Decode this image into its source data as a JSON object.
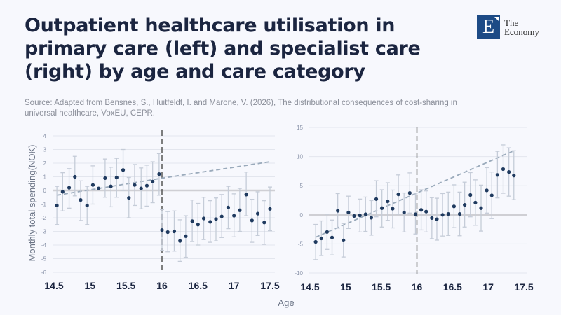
{
  "header": {
    "title": "Outpatient healthcare utilisation in primary care (left) and specialist care (right) by age and care category",
    "source": "Source: Adapted from Bensnes, S., Huitfeldt, I. and Marone, V. (2026), The distributional consequences of cost-sharing in universal healthcare, VoxEU, CEPR.",
    "logo_text": [
      "The",
      "Economy"
    ],
    "logo_letter": "E"
  },
  "colors": {
    "point": "#1f3a5f",
    "errorbar": "#c5ccd8",
    "trend": "#9aaabb",
    "cutoff": "#555555",
    "title": "#1b2540",
    "logo": "#1d4b86"
  },
  "chart_data": [
    {
      "type": "scatter",
      "panel": "left",
      "ylabel": "Monthly total spending(NOK)",
      "xlabel": "Age",
      "xlim": [
        14.5,
        17.5
      ],
      "ylim": [
        -6,
        4
      ],
      "xticks": [
        "14.5",
        "15",
        "15.5",
        "16",
        "16.5",
        "17",
        "17.5"
      ],
      "yticks": [
        "4",
        "3",
        "2",
        "1",
        "0",
        "-1",
        "-2",
        "-3",
        "-4",
        "-5",
        "-6"
      ],
      "cutoff": 16,
      "grid": true,
      "points": [
        [
          14.54,
          -1.1,
          -2.5,
          0.3
        ],
        [
          14.62,
          -0.1,
          -1.5,
          1.3
        ],
        [
          14.71,
          0.2,
          -1.3,
          1.6
        ],
        [
          14.79,
          1.0,
          -0.4,
          2.5
        ],
        [
          14.87,
          -0.7,
          -2.2,
          0.7
        ],
        [
          14.96,
          -1.1,
          -2.5,
          0.3
        ],
        [
          15.04,
          0.4,
          -1.0,
          1.8
        ],
        [
          15.12,
          0.15,
          0.15,
          0.15
        ],
        [
          15.21,
          0.9,
          -0.5,
          2.3
        ],
        [
          15.29,
          0.3,
          -1.2,
          1.7
        ],
        [
          15.37,
          0.95,
          -0.5,
          2.35
        ],
        [
          15.46,
          1.5,
          0.0,
          3.0
        ],
        [
          15.54,
          -0.55,
          -2.0,
          0.95
        ],
        [
          15.62,
          0.4,
          -1.1,
          1.9
        ],
        [
          15.71,
          0.15,
          -1.35,
          1.65
        ],
        [
          15.79,
          0.35,
          -1.15,
          1.85
        ],
        [
          15.87,
          0.65,
          -0.9,
          2.1
        ],
        [
          15.96,
          1.2,
          -0.35,
          2.7
        ],
        [
          16.0,
          -2.9,
          -4.4,
          -1.4
        ],
        [
          16.08,
          -3.05,
          -4.5,
          -1.55
        ],
        [
          16.17,
          -3.0,
          -4.45,
          -1.5
        ],
        [
          16.25,
          -3.7,
          -5.2,
          -2.15
        ],
        [
          16.33,
          -3.35,
          -4.9,
          -1.85
        ],
        [
          16.42,
          -2.25,
          -3.75,
          -0.7
        ],
        [
          16.5,
          -2.5,
          -4.0,
          -0.95
        ],
        [
          16.58,
          -2.05,
          -3.6,
          -0.5
        ],
        [
          16.67,
          -2.3,
          -3.8,
          -0.75
        ],
        [
          16.75,
          -2.1,
          -3.7,
          -0.55
        ],
        [
          16.83,
          -1.9,
          -3.45,
          -0.3
        ],
        [
          16.92,
          -1.25,
          -2.8,
          0.3
        ],
        [
          17.0,
          -1.85,
          -3.4,
          -0.25
        ],
        [
          17.08,
          -1.45,
          -3.0,
          0.15
        ],
        [
          17.17,
          -0.3,
          -1.85,
          1.35
        ],
        [
          17.25,
          -2.2,
          -3.8,
          -0.65
        ],
        [
          17.33,
          -1.7,
          -3.3,
          -0.1
        ],
        [
          17.42,
          -2.35,
          -3.95,
          -0.75
        ],
        [
          17.5,
          -1.35,
          -2.95,
          0.25
        ]
      ],
      "trend": [
        [
          14.54,
          -0.35
        ],
        [
          16.0,
          0.9
        ],
        [
          17.5,
          2.1
        ]
      ]
    },
    {
      "type": "scatter",
      "panel": "right",
      "xlabel": "Age",
      "xlim": [
        14.5,
        17.5
      ],
      "ylim": [
        -10,
        15
      ],
      "xticks": [
        "14.5",
        "15",
        "15.5",
        "16",
        "16.5",
        "17",
        "17.5"
      ],
      "yticks": [
        "15",
        "10",
        "5",
        "0",
        "-5",
        "-10"
      ],
      "cutoff": 16,
      "grid": true,
      "points": [
        [
          14.58,
          -4.65,
          -7.7,
          -1.65
        ],
        [
          14.66,
          -4.05,
          -7.0,
          -1.05
        ],
        [
          14.74,
          -2.95,
          -5.95,
          0.1
        ],
        [
          14.81,
          -3.9,
          -6.9,
          -0.9
        ],
        [
          14.89,
          0.7,
          -2.3,
          3.65
        ],
        [
          14.97,
          -4.4,
          -7.25,
          -1.5
        ],
        [
          15.04,
          0.4,
          -2.35,
          3.2
        ],
        [
          15.12,
          -0.2,
          -0.2,
          -0.2
        ],
        [
          15.2,
          -0.1,
          -2.95,
          2.7
        ],
        [
          15.28,
          0.1,
          -2.85,
          3.05
        ],
        [
          15.36,
          -0.5,
          -3.5,
          2.45
        ],
        [
          15.43,
          2.7,
          -0.35,
          5.85
        ],
        [
          15.51,
          1.15,
          -2.1,
          4.3
        ],
        [
          15.59,
          2.3,
          -0.95,
          5.5
        ],
        [
          15.66,
          1.05,
          -2.25,
          4.25
        ],
        [
          15.74,
          3.5,
          0.1,
          6.85
        ],
        [
          15.82,
          0.4,
          -2.95,
          3.75
        ],
        [
          15.9,
          3.75,
          0.3,
          7.2
        ],
        [
          15.98,
          0.1,
          -3.3,
          3.6
        ],
        [
          16.06,
          0.85,
          -2.6,
          4.3
        ],
        [
          16.13,
          0.55,
          -2.95,
          4.1
        ],
        [
          16.21,
          -0.55,
          -4.1,
          2.95
        ],
        [
          16.28,
          -0.75,
          -4.35,
          2.85
        ],
        [
          16.36,
          0.0,
          -3.65,
          3.65
        ],
        [
          16.44,
          0.15,
          -3.55,
          3.9
        ],
        [
          16.52,
          1.45,
          -2.2,
          5.15
        ],
        [
          16.6,
          0.15,
          -3.6,
          3.9
        ],
        [
          16.67,
          1.7,
          -2.1,
          5.6
        ],
        [
          16.75,
          3.4,
          -0.35,
          7.25
        ],
        [
          16.82,
          2.1,
          -1.8,
          6.0
        ],
        [
          16.9,
          1.15,
          -2.8,
          5.1
        ],
        [
          16.98,
          4.2,
          0.3,
          8.1
        ],
        [
          17.05,
          3.35,
          -0.65,
          7.35
        ],
        [
          17.13,
          6.85,
          2.9,
          10.9
        ],
        [
          17.21,
          7.85,
          3.7,
          12.0
        ],
        [
          17.29,
          7.35,
          3.2,
          11.5
        ],
        [
          17.36,
          6.75,
          2.6,
          11.0
        ]
      ],
      "trend": [
        [
          14.58,
          -3.85
        ],
        [
          16.0,
          3.75
        ],
        [
          17.36,
          11.0
        ]
      ]
    }
  ]
}
